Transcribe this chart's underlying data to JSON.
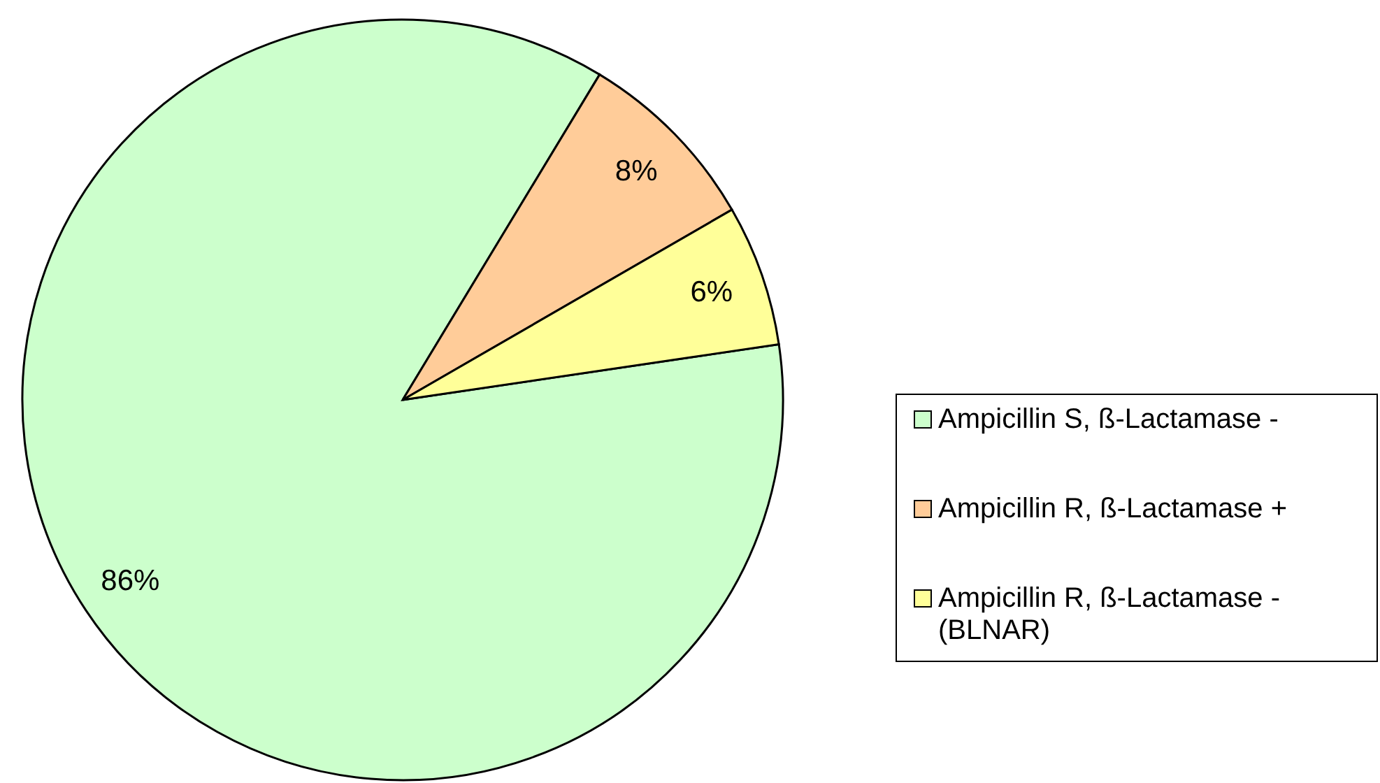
{
  "chart_data": {
    "type": "pie",
    "categories": [
      "Ampicillin S, ß-Lactamase -",
      "Ampicillin R, ß-Lactamase +",
      "Ampicillin R, ß-Lactamase - (BLNAR)"
    ],
    "values": [
      86,
      8,
      6
    ],
    "colors": [
      "#ccffcc",
      "#ffcc99",
      "#ffff99"
    ],
    "value_labels": [
      "86%",
      "8%",
      "6%"
    ],
    "legend": "right"
  }
}
